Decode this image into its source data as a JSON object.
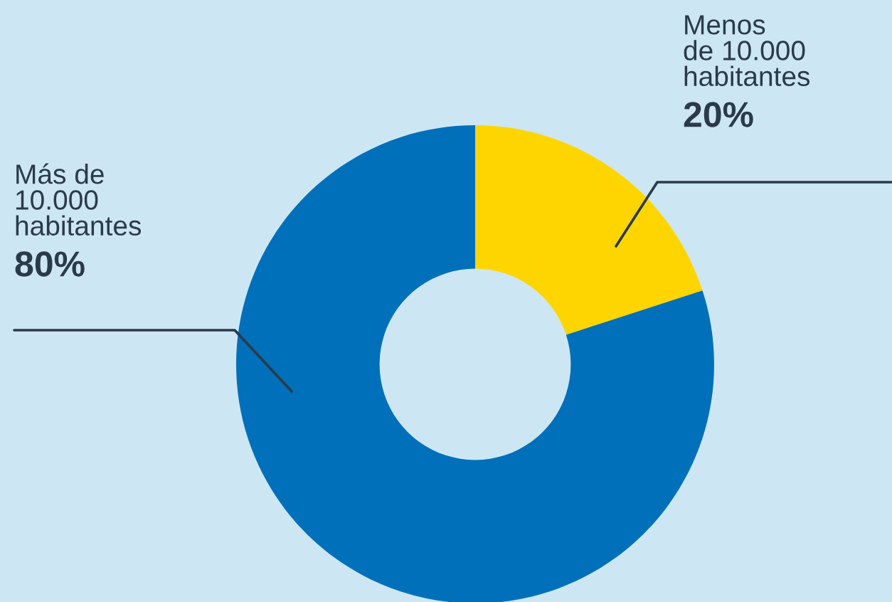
{
  "chart_data": {
    "type": "donut",
    "categories": [
      "Menos\nde 10.000\nhabitantes",
      "Más de\n10.000\nhabitantes"
    ],
    "values": [
      20,
      80
    ],
    "colors": [
      "#ffd500",
      "#0070ba"
    ],
    "value_labels": [
      "20%",
      "80%"
    ],
    "legend": false
  }
}
